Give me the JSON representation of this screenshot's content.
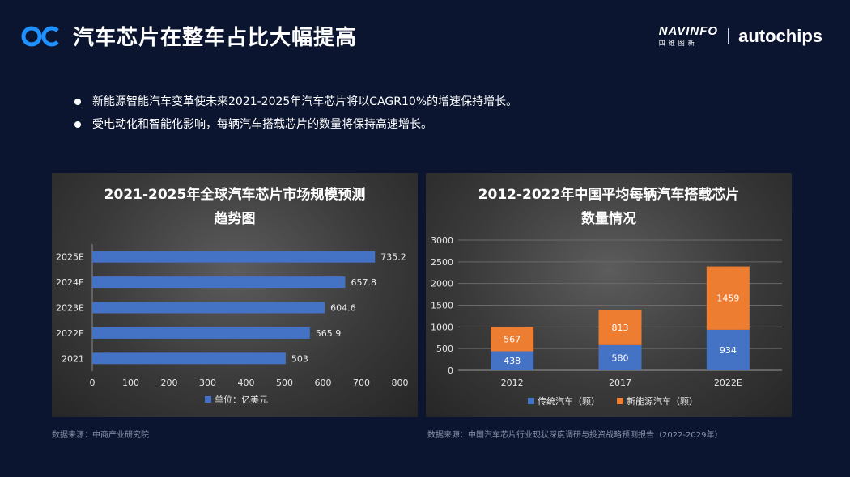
{
  "header": {
    "title": "汽车芯片在整车占比大幅提高",
    "logo_icon": "oc-logo-icon",
    "brand_navinfo": "NAVINFO",
    "brand_navinfo_cn": "四维图新",
    "brand_autochips": "autochips"
  },
  "bullets": [
    "新能源智能汽车变革使未来2021-2025年汽车芯片将以CAGR10%的增速保持增长。",
    "受电动化和智能化影响，每辆汽车搭载芯片的数量将保持高速增长。"
  ],
  "sources": {
    "left": "数据来源：中商产业研究院",
    "right": "数据来源：中国汽车芯片行业现状深度调研与投资战略预测报告（2022-2029年）"
  },
  "colors": {
    "blue": "#4472c4",
    "orange": "#ed7d31",
    "background": "#0b1530",
    "accent": "#1e90ff"
  },
  "chart_data": [
    {
      "type": "bar",
      "orientation": "horizontal",
      "title_lines": [
        "2021-2025年全球汽车芯片市场规模预测",
        "趋势图"
      ],
      "categories": [
        "2021",
        "2022E",
        "2023E",
        "2024E",
        "2025E"
      ],
      "series": [
        {
          "name": "单位：亿美元",
          "values": [
            503,
            565.9,
            604.6,
            657.8,
            735.2
          ]
        }
      ],
      "data_labels": [
        "503",
        "565.9",
        "604.6",
        "657.8",
        "735.2"
      ],
      "xlim": [
        0,
        800
      ],
      "xticks": [
        0,
        100,
        200,
        300,
        400,
        500,
        600,
        700,
        800
      ],
      "grid": false,
      "legend": "bottom"
    },
    {
      "type": "bar",
      "orientation": "vertical",
      "stacked": true,
      "title_lines": [
        "2012-2022年中国平均每辆汽车搭载芯片",
        "数量情况"
      ],
      "categories": [
        "2012",
        "2017",
        "2022E"
      ],
      "series": [
        {
          "name": "传统汽车（颗）",
          "values": [
            438,
            580,
            934
          ]
        },
        {
          "name": "新能源汽车（颗）",
          "values": [
            567,
            813,
            1459
          ]
        }
      ],
      "ylim": [
        0,
        3000
      ],
      "yticks": [
        0,
        500,
        1000,
        1500,
        2000,
        2500,
        3000
      ],
      "grid": true,
      "legend": "bottom"
    }
  ]
}
